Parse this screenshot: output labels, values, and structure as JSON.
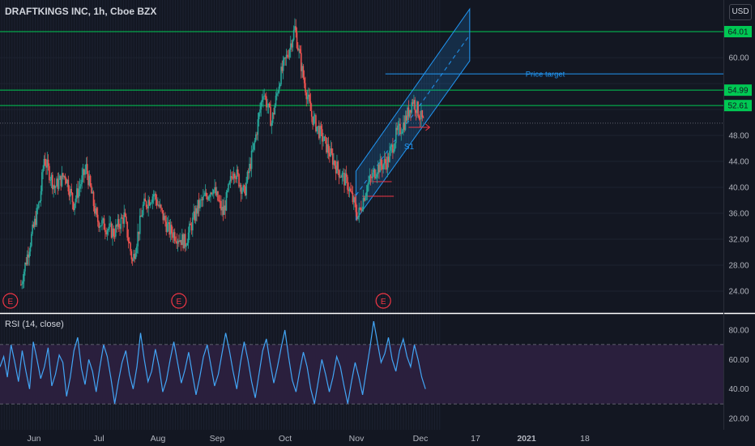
{
  "header": {
    "symbol_title": "DRAFTKINGS INC, 1h, Cboe BZX",
    "currency_button": "USD",
    "rsi_title": "RSI (14, close)"
  },
  "colors": {
    "background": "#131722",
    "level_line": "#00c853",
    "channel": "#2196f3",
    "rsi_line": "#42a5f5",
    "rsi_band": "#2a1f3d",
    "earnings_marker": "#f23645",
    "support_line": "#f23645"
  },
  "chart_data": [
    {
      "type": "candlestick",
      "title": "DRAFTKINGS INC, 1h, Cboe BZX",
      "x_tick_labels": [
        "Jun",
        "Jul",
        "Aug",
        "Sep",
        "Oct",
        "Nov",
        "Dec",
        "17",
        "2021",
        "18"
      ],
      "y_tick_labels": [
        24,
        28,
        32,
        36,
        40,
        44,
        48,
        52,
        56,
        60,
        64
      ],
      "ylim": [
        21.5,
        68
      ],
      "unit": "USD",
      "price_path": [
        {
          "date": "May 25",
          "price": 25
        },
        {
          "date": "May 29",
          "price": 31
        },
        {
          "date": "Jun 3",
          "price": 38
        },
        {
          "date": "Jun 5",
          "price": 44.5
        },
        {
          "date": "Jun 10",
          "price": 40
        },
        {
          "date": "Jun 15",
          "price": 42
        },
        {
          "date": "Jun 19",
          "price": 37.5
        },
        {
          "date": "Jun 25",
          "price": 43
        },
        {
          "date": "Jun 30",
          "price": 35
        },
        {
          "date": "Jul 8",
          "price": 33
        },
        {
          "date": "Jul 13",
          "price": 35.5
        },
        {
          "date": "Jul 17",
          "price": 28.5
        },
        {
          "date": "Jul 22",
          "price": 37
        },
        {
          "date": "Jul 27",
          "price": 39
        },
        {
          "date": "Aug 3",
          "price": 33.5
        },
        {
          "date": "Aug 11",
          "price": 31.5
        },
        {
          "date": "Aug 17",
          "price": 37
        },
        {
          "date": "Aug 24",
          "price": 40
        },
        {
          "date": "Aug 29",
          "price": 36
        },
        {
          "date": "Sep 3",
          "price": 43
        },
        {
          "date": "Sep 8",
          "price": 39
        },
        {
          "date": "Sep 13",
          "price": 47
        },
        {
          "date": "Sep 17",
          "price": 55
        },
        {
          "date": "Sep 21",
          "price": 50
        },
        {
          "date": "Sep 25",
          "price": 57
        },
        {
          "date": "Sep 29",
          "price": 61
        },
        {
          "date": "Oct 2",
          "price": 64.5
        },
        {
          "date": "Oct 6",
          "price": 57
        },
        {
          "date": "Oct 10",
          "price": 51
        },
        {
          "date": "Oct 16",
          "price": 47
        },
        {
          "date": "Oct 22",
          "price": 43
        },
        {
          "date": "Oct 27",
          "price": 40.5
        },
        {
          "date": "Nov 1",
          "price": 35.5
        },
        {
          "date": "Nov 5",
          "price": 40
        },
        {
          "date": "Nov 10",
          "price": 43
        },
        {
          "date": "Nov 15",
          "price": 44
        },
        {
          "date": "Nov 19",
          "price": 48
        },
        {
          "date": "Nov 23",
          "price": 50
        },
        {
          "date": "Nov 27",
          "price": 53.5
        },
        {
          "date": "Dec 2",
          "price": 50
        }
      ],
      "horizontal_levels": [
        {
          "label": "64.01",
          "value": 64.01
        },
        {
          "label": "54.99",
          "value": 54.99
        },
        {
          "label": "52.61",
          "value": 52.61
        }
      ],
      "current_price_level": 49.9,
      "price_target": {
        "label": "Price target",
        "value": 57.5
      },
      "pattern_labels": [
        "S1"
      ],
      "earnings_markers": [
        {
          "label": "E",
          "date": "May 20"
        },
        {
          "label": "E",
          "date": "Aug 8"
        },
        {
          "label": "E",
          "date": "Nov 13"
        }
      ],
      "channel": {
        "lower_start": {
          "date": "Oct 31",
          "price": 35
        },
        "lower_end": {
          "date": "Dec 24",
          "price": 59.5
        },
        "upper_start": {
          "date": "Oct 31",
          "price": 42.5
        },
        "upper_end": {
          "date": "Dec 24",
          "price": 67.5
        }
      },
      "grid": true
    },
    {
      "type": "line",
      "title": "RSI (14, close)",
      "y_tick_labels": [
        20,
        40,
        60,
        80
      ],
      "ylim": [
        17,
        90
      ],
      "band": [
        30,
        70
      ],
      "series": [
        {
          "values": [
            55,
            62,
            48,
            70,
            58,
            45,
            66,
            52,
            40,
            72,
            60,
            47,
            55,
            68,
            42,
            50,
            63,
            58,
            35,
            48,
            66,
            75,
            54,
            43,
            60,
            52,
            38,
            55,
            70,
            62,
            47,
            30,
            45,
            58,
            66,
            50,
            40,
            55,
            78,
            60,
            45,
            52,
            67,
            55,
            38,
            46,
            60,
            72,
            58,
            44,
            53,
            65,
            50,
            36,
            48,
            62,
            70,
            56,
            42,
            50,
            64,
            78,
            66,
            52,
            40,
            58,
            72,
            60,
            45,
            34,
            50,
            66,
            74,
            58,
            44,
            55,
            68,
            80,
            62,
            46,
            38,
            52,
            65,
            55,
            40,
            30,
            45,
            60,
            50,
            38,
            48,
            62,
            55,
            42,
            30,
            45,
            58,
            48,
            36,
            52,
            68,
            86,
            72,
            58,
            64,
            75,
            60,
            52,
            66,
            74,
            62,
            55,
            70,
            60,
            48,
            40
          ]
        }
      ]
    }
  ]
}
